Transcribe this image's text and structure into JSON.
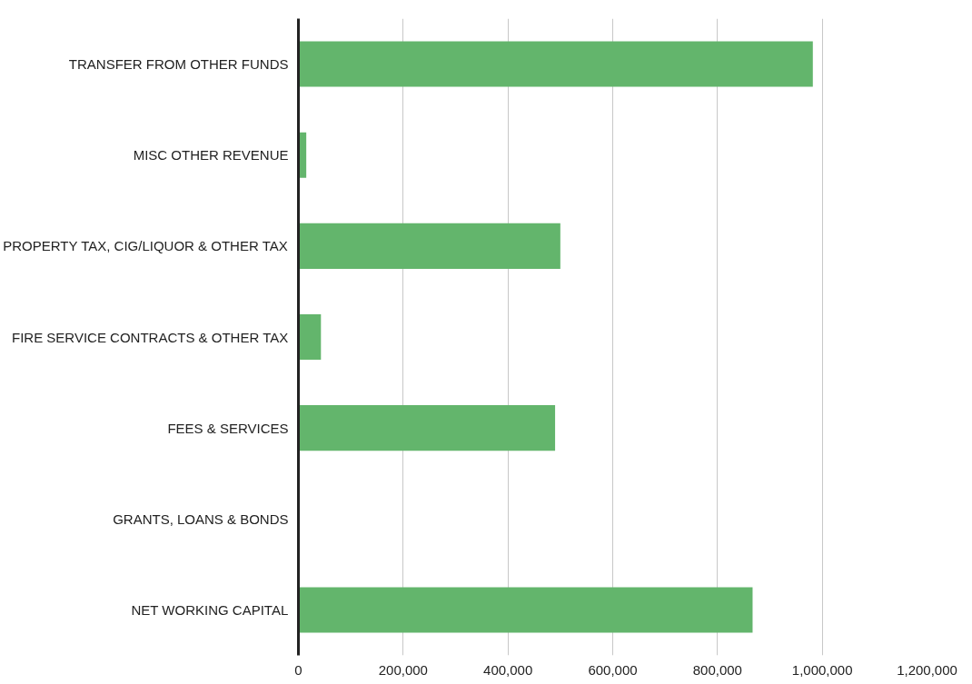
{
  "chart_data": {
    "type": "bar",
    "orientation": "horizontal",
    "categories": [
      "TRANSFER FROM OTHER FUNDS",
      "MISC OTHER REVENUE",
      "PROPERTY TAX, CIG/LIQUOR & OTHER TAX",
      "FIRE SERVICE CONTRACTS & OTHER TAX",
      "FEES & SERVICES",
      "GRANTS, LOANS & BONDS",
      "NET WORKING CAPITAL"
    ],
    "values": [
      982000,
      15000,
      500000,
      43000,
      490000,
      0,
      867000
    ],
    "color": "#63b56c",
    "xlim": [
      0,
      1200000
    ],
    "xticks": [
      {
        "value": 0,
        "label": "0"
      },
      {
        "value": 200000,
        "label": "200,000"
      },
      {
        "value": 400000,
        "label": "400,000"
      },
      {
        "value": 600000,
        "label": "600,000"
      },
      {
        "value": 800000,
        "label": "800,000"
      },
      {
        "value": 1000000,
        "label": "1,000,000"
      },
      {
        "value": 1200000,
        "label": "1,200,000"
      }
    ],
    "grid": "x"
  }
}
